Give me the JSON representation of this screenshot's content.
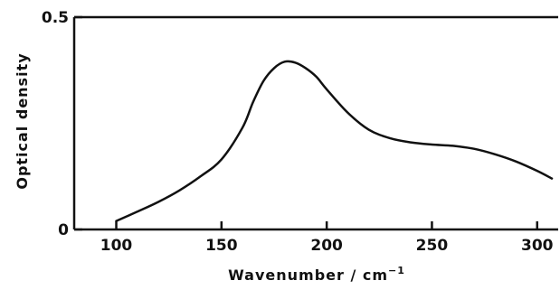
{
  "chart_data": {
    "type": "line",
    "title": "",
    "xlabel": "Wavenumber / cm",
    "xlabel_superscript": "−1",
    "ylabel": "Optical density",
    "xlim": [
      80,
      310
    ],
    "ylim": [
      0,
      0.5
    ],
    "x_ticks": [
      100,
      150,
      200,
      250,
      300
    ],
    "x_tick_labels": [
      "100",
      "150",
      "200",
      "250",
      "300"
    ],
    "y_ticks": [
      0,
      0.5
    ],
    "y_tick_labels": [
      "0",
      "0.5"
    ],
    "grid": false,
    "series": [
      {
        "x": [
          100,
          110,
          120,
          130,
          140,
          150,
          160,
          165,
          170,
          175,
          180,
          185,
          190,
          195,
          200,
          210,
          220,
          230,
          240,
          250,
          260,
          270,
          280,
          290,
          300,
          307
        ],
        "values": [
          0.02,
          0.042,
          0.065,
          0.092,
          0.125,
          0.165,
          0.24,
          0.3,
          0.35,
          0.38,
          0.395,
          0.393,
          0.38,
          0.36,
          0.33,
          0.275,
          0.235,
          0.215,
          0.205,
          0.2,
          0.197,
          0.19,
          0.177,
          0.16,
          0.138,
          0.12
        ]
      }
    ]
  }
}
